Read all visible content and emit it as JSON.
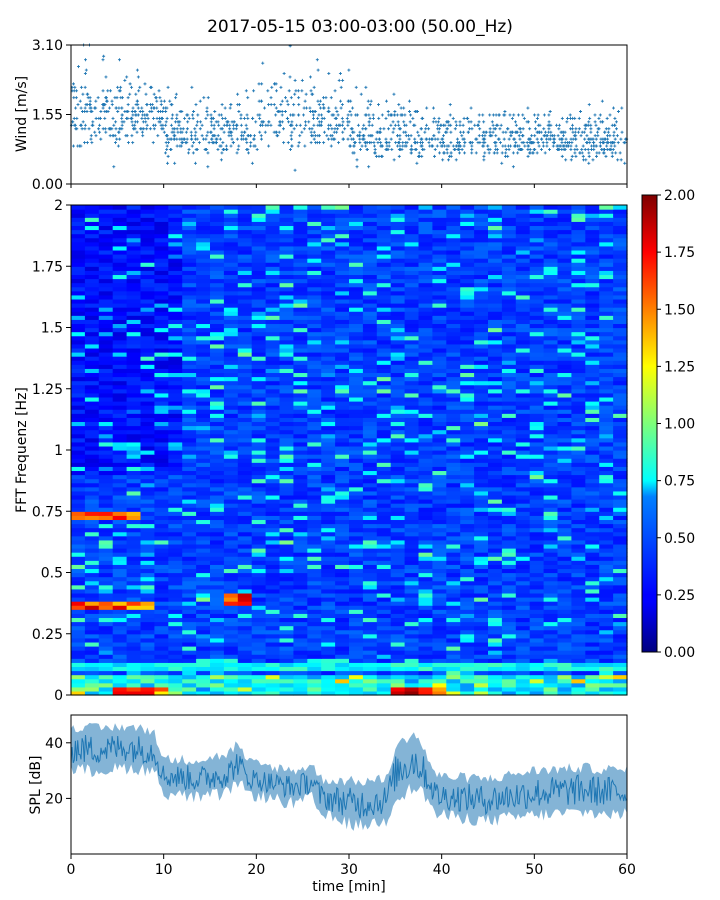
{
  "chart_data": [
    {
      "type": "scatter",
      "panel": "wind",
      "title": "2017-05-15 03:00-03:00 (50.00_Hz)",
      "xlabel": "",
      "ylabel": "Wind [m/s]",
      "xlim": [
        0,
        60
      ],
      "ylim": [
        0,
        3.1
      ],
      "yticks": [
        0.0,
        1.55,
        3.1
      ],
      "ytick_labels": [
        "0.00",
        "1.55",
        "3.10"
      ],
      "marker": "+",
      "color": "#1f77b4",
      "series_summary": [
        {
          "x_range": [
            0,
            10
          ],
          "y_mean": 1.5,
          "y_spread": 0.9
        },
        {
          "x_range": [
            10,
            20
          ],
          "y_mean": 1.1,
          "y_spread": 0.7
        },
        {
          "x_range": [
            20,
            30
          ],
          "y_mean": 1.4,
          "y_spread": 0.9
        },
        {
          "x_range": [
            30,
            40
          ],
          "y_mean": 1.0,
          "y_spread": 0.7
        },
        {
          "x_range": [
            40,
            60
          ],
          "y_mean": 0.95,
          "y_spread": 0.55
        }
      ]
    },
    {
      "type": "heatmap",
      "panel": "spectrogram",
      "xlabel": "",
      "ylabel": "FFT Frequenz [Hz]",
      "xlim": [
        0,
        60
      ],
      "ylim": [
        0,
        2
      ],
      "yticks": [
        0,
        0.25,
        0.5,
        0.75,
        1,
        1.25,
        1.5,
        1.75,
        2
      ],
      "ytick_labels": [
        "0",
        "0.25",
        "0.5",
        "0.75",
        "1",
        "1.25",
        "1.5",
        "1.75",
        "2"
      ],
      "colormap": "jet",
      "clim": [
        0,
        2
      ],
      "colorbar_ticks": [
        "0.00",
        "0.25",
        "0.50",
        "0.75",
        "1.00",
        "1.25",
        "1.50",
        "1.75",
        "2.00"
      ],
      "highlights": [
        {
          "x_range": [
            0,
            9
          ],
          "freq": 0.37,
          "value": 1.9
        },
        {
          "x_range": [
            0,
            8
          ],
          "freq": 0.73,
          "value": 1.8
        },
        {
          "x_range": [
            16,
            20
          ],
          "freq": 0.39,
          "value": 1.9
        },
        {
          "x_range": [
            34,
            40
          ],
          "freq": 0.02,
          "value": 2.0
        },
        {
          "x_range": [
            5,
            10
          ],
          "freq": 0.01,
          "value": 1.8
        },
        {
          "x_range": [
            0,
            60
          ],
          "freq": 0.12,
          "value": 0.9
        }
      ]
    },
    {
      "type": "area",
      "panel": "spl",
      "xlabel": "time [min]",
      "ylabel": "SPL [dB]",
      "xlim": [
        0,
        60
      ],
      "ylim": [
        0,
        50
      ],
      "yticks": [
        20,
        40
      ],
      "ytick_labels": [
        "20",
        "40"
      ],
      "xticks": [
        0,
        10,
        20,
        30,
        40,
        50,
        60
      ],
      "xtick_labels": [
        "0",
        "10",
        "20",
        "30",
        "40",
        "50",
        "60"
      ],
      "color": "#1f77b4",
      "envelope": [
        {
          "x": 0,
          "low": 30,
          "high": 46
        },
        {
          "x": 3,
          "low": 30,
          "high": 45
        },
        {
          "x": 6,
          "low": 31,
          "high": 46
        },
        {
          "x": 9,
          "low": 30,
          "high": 44
        },
        {
          "x": 10,
          "low": 22,
          "high": 34
        },
        {
          "x": 14,
          "low": 20,
          "high": 34
        },
        {
          "x": 17,
          "low": 22,
          "high": 36
        },
        {
          "x": 18,
          "low": 26,
          "high": 40
        },
        {
          "x": 19,
          "low": 22,
          "high": 33
        },
        {
          "x": 24,
          "low": 18,
          "high": 30
        },
        {
          "x": 26,
          "low": 20,
          "high": 32
        },
        {
          "x": 27,
          "low": 14,
          "high": 27
        },
        {
          "x": 31,
          "low": 10,
          "high": 26
        },
        {
          "x": 34,
          "low": 12,
          "high": 27
        },
        {
          "x": 35,
          "low": 20,
          "high": 38
        },
        {
          "x": 37,
          "low": 24,
          "high": 44
        },
        {
          "x": 38,
          "low": 22,
          "high": 38
        },
        {
          "x": 39.5,
          "low": 14,
          "high": 28
        },
        {
          "x": 45,
          "low": 12,
          "high": 27
        },
        {
          "x": 50,
          "low": 14,
          "high": 30
        },
        {
          "x": 55,
          "low": 15,
          "high": 31
        },
        {
          "x": 60,
          "low": 14,
          "high": 30
        }
      ]
    }
  ]
}
